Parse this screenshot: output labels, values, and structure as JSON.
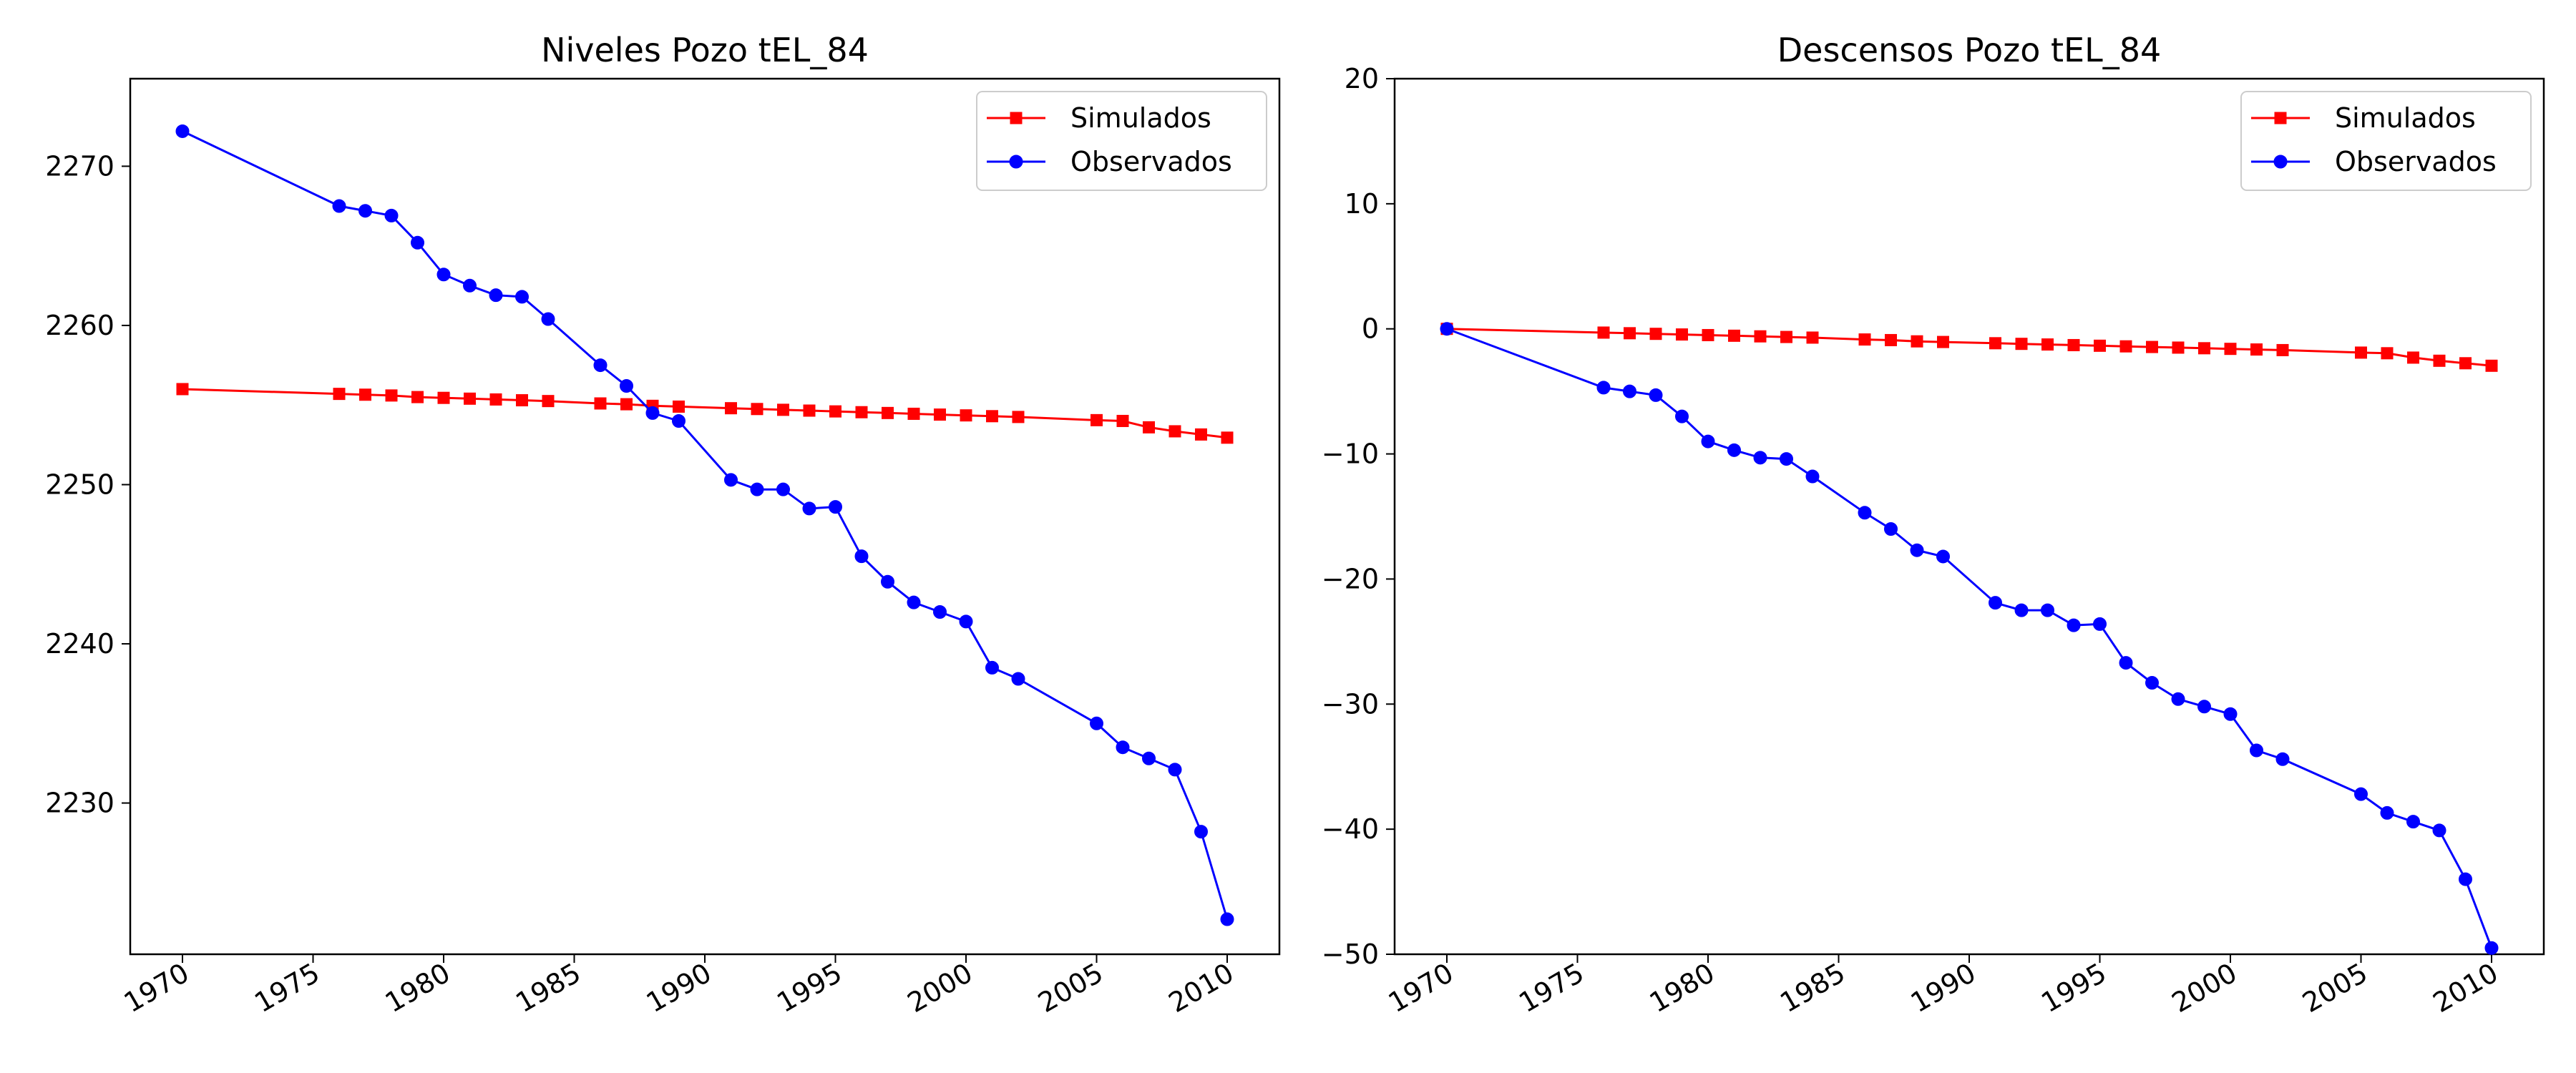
{
  "chart_data": [
    {
      "type": "line",
      "title": "Niveles Pozo tEL_84",
      "xlabel": "",
      "ylabel": "",
      "xlim": [
        1968,
        2012
      ],
      "ylim": [
        2220.5,
        2275.5
      ],
      "xticks": [
        1970,
        1975,
        1980,
        1985,
        1990,
        1995,
        2000,
        2005,
        2010
      ],
      "xtick_labels": [
        "1970",
        "1975",
        "1980",
        "1985",
        "1990",
        "1995",
        "2000",
        "2005",
        "2010"
      ],
      "yticks": [
        2230,
        2240,
        2250,
        2260,
        2270
      ],
      "ytick_labels": [
        "2230",
        "2240",
        "2250",
        "2260",
        "2270"
      ],
      "grid": false,
      "legend": "top-right",
      "series": [
        {
          "name": "Simulados",
          "color": "#ff0000",
          "marker": "square",
          "x": [
            1970,
            1976,
            1977,
            1978,
            1979,
            1980,
            1981,
            1982,
            1983,
            1984,
            1986,
            1987,
            1988,
            1989,
            1991,
            1992,
            1993,
            1994,
            1995,
            1996,
            1997,
            1998,
            1999,
            2000,
            2001,
            2002,
            2005,
            2006,
            2007,
            2008,
            2009,
            2010
          ],
          "y": [
            2256.0,
            2255.7,
            2255.65,
            2255.6,
            2255.5,
            2255.45,
            2255.4,
            2255.35,
            2255.3,
            2255.25,
            2255.1,
            2255.05,
            2254.95,
            2254.9,
            2254.8,
            2254.75,
            2254.7,
            2254.65,
            2254.6,
            2254.55,
            2254.5,
            2254.45,
            2254.4,
            2254.35,
            2254.3,
            2254.25,
            2254.05,
            2254.0,
            2253.6,
            2253.35,
            2253.15,
            2252.95
          ]
        },
        {
          "name": "Observados",
          "color": "#0000ff",
          "marker": "circle",
          "x": [
            1970,
            1976,
            1977,
            1978,
            1979,
            1980,
            1981,
            1982,
            1983,
            1984,
            1986,
            1987,
            1988,
            1989,
            1991,
            1992,
            1993,
            1994,
            1995,
            1996,
            1997,
            1998,
            1999,
            2000,
            2001,
            2002,
            2005,
            2006,
            2007,
            2008,
            2009,
            2010
          ],
          "y": [
            2272.2,
            2267.5,
            2267.2,
            2266.9,
            2265.2,
            2263.2,
            2262.5,
            2261.9,
            2261.8,
            2260.4,
            2257.5,
            2256.2,
            2254.5,
            2254.0,
            2250.3,
            2249.7,
            2249.7,
            2248.5,
            2248.6,
            2245.5,
            2243.9,
            2242.6,
            2242.0,
            2241.4,
            2238.5,
            2237.8,
            2235.0,
            2233.5,
            2232.8,
            2232.1,
            2228.2,
            2222.7
          ]
        }
      ]
    },
    {
      "type": "line",
      "title": "Descensos Pozo tEL_84",
      "xlabel": "",
      "ylabel": "",
      "xlim": [
        1968,
        2012
      ],
      "ylim": [
        -50,
        20
      ],
      "xticks": [
        1970,
        1975,
        1980,
        1985,
        1990,
        1995,
        2000,
        2005,
        2010
      ],
      "xtick_labels": [
        "1970",
        "1975",
        "1980",
        "1985",
        "1990",
        "1995",
        "2000",
        "2005",
        "2010"
      ],
      "yticks": [
        -50,
        -40,
        -30,
        -20,
        -10,
        0,
        10,
        20
      ],
      "ytick_labels": [
        "−50",
        "−40",
        "−30",
        "−20",
        "−10",
        "0",
        "10",
        "20"
      ],
      "grid": false,
      "legend": "top-right",
      "series": [
        {
          "name": "Simulados",
          "color": "#ff0000",
          "marker": "square",
          "x": [
            1970,
            1976,
            1977,
            1978,
            1979,
            1980,
            1981,
            1982,
            1983,
            1984,
            1986,
            1987,
            1988,
            1989,
            1991,
            1992,
            1993,
            1994,
            1995,
            1996,
            1997,
            1998,
            1999,
            2000,
            2001,
            2002,
            2005,
            2006,
            2007,
            2008,
            2009,
            2010
          ],
          "y": [
            0,
            -0.3,
            -0.35,
            -0.4,
            -0.45,
            -0.5,
            -0.55,
            -0.6,
            -0.65,
            -0.7,
            -0.85,
            -0.9,
            -1.0,
            -1.05,
            -1.15,
            -1.2,
            -1.25,
            -1.3,
            -1.35,
            -1.4,
            -1.45,
            -1.5,
            -1.55,
            -1.6,
            -1.65,
            -1.7,
            -1.9,
            -1.95,
            -2.3,
            -2.55,
            -2.75,
            -2.95
          ]
        },
        {
          "name": "Observados",
          "color": "#0000ff",
          "marker": "circle",
          "x": [
            1970,
            1976,
            1977,
            1978,
            1979,
            1980,
            1981,
            1982,
            1983,
            1984,
            1986,
            1987,
            1988,
            1989,
            1991,
            1992,
            1993,
            1994,
            1995,
            1996,
            1997,
            1998,
            1999,
            2000,
            2001,
            2002,
            2005,
            2006,
            2007,
            2008,
            2009,
            2010
          ],
          "y": [
            0,
            -4.7,
            -5.0,
            -5.3,
            -7.0,
            -9.0,
            -9.7,
            -10.3,
            -10.4,
            -11.8,
            -14.7,
            -16.0,
            -17.7,
            -18.2,
            -21.9,
            -22.5,
            -22.5,
            -23.7,
            -23.6,
            -26.7,
            -28.3,
            -29.6,
            -30.2,
            -30.8,
            -33.7,
            -34.4,
            -37.2,
            -38.7,
            -39.4,
            -40.1,
            -44.0,
            -49.5
          ]
        }
      ]
    }
  ]
}
